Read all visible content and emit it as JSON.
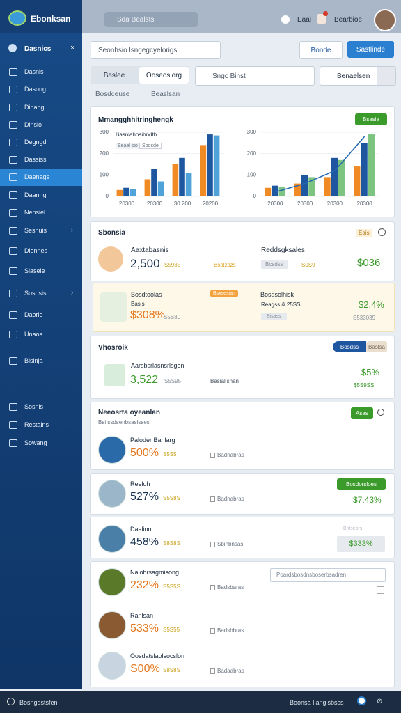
{
  "topbar": {
    "brand": "Ebonksan",
    "search": "Sda Bealsts",
    "status": "Eaai",
    "user": "Bearbioe"
  },
  "sidebar": {
    "header": "Dasnics",
    "items": [
      "Dasnis",
      "Dasong",
      "Dinang",
      "Dlnsio",
      "Degngd",
      "Dassiss",
      "Daenags",
      "Daanng",
      "Nensiel",
      "Sesnuis",
      "Dionnes",
      "Slasele",
      "Sosnsis",
      "Daorle",
      "Unaos",
      "Bisinja",
      "Sosnis",
      "Restains",
      "Sowang"
    ]
  },
  "filters": {
    "dropdown": "Seonhsio lsngegcyelorigs",
    "button_outline": "Bonde",
    "button_primary": "Sastlinde",
    "segment": [
      "Baslee",
      "Ooseosiorg"
    ],
    "dropdown2": "Sngc Binst",
    "select": "Benaelsen",
    "tags": [
      "Bosdceuse",
      "Beaslsan"
    ]
  },
  "chart_card": {
    "title": "Mmangghhitringhengk",
    "legend": "Basnlahosibndth",
    "chips": [
      "Seael sio",
      "Sbosde"
    ],
    "badge": "Bsasia",
    "charts": [
      {
        "ylim": [
          0,
          300
        ],
        "yticks": [
          0,
          100,
          200,
          300
        ],
        "categories": [
          "20300",
          "20300",
          "30 200",
          "20200"
        ],
        "series": [
          {
            "color": "#f08a24",
            "values": [
              30,
              80,
              150,
              240
            ]
          },
          {
            "color": "#1f56a0",
            "values": [
              40,
              130,
              180,
              290
            ]
          },
          {
            "color": "#4fa3d8",
            "values": [
              35,
              70,
              110,
              285
            ]
          }
        ]
      },
      {
        "ylim": [
          0,
          300
        ],
        "yticks": [
          0,
          100,
          200,
          300
        ],
        "categories": [
          "20300",
          "20300",
          "20300",
          "20300"
        ],
        "series": [
          {
            "color": "#f08a24",
            "values": [
              40,
              60,
              90,
              140
            ]
          },
          {
            "color": "#1f56a0",
            "values": [
              50,
              100,
              180,
              250
            ]
          },
          {
            "color": "#7cc47f",
            "values": [
              45,
              90,
              170,
              290
            ]
          }
        ],
        "line": {
          "color": "#2466b0",
          "values": [
            20,
            60,
            120,
            280
          ]
        }
      }
    ]
  },
  "summary": {
    "title": "Sbonsia",
    "tag": "Eais",
    "left": {
      "label": "Aaxtabasnis",
      "value": "2,500",
      "sub": "S5935",
      "note": "Bsolzszs"
    },
    "right": {
      "label": "Reddsgksales",
      "chip": "Bcsdss",
      "sub": "S0S9",
      "value": "$036"
    }
  },
  "highlight": {
    "label": "Bosdtoolas",
    "sub_label": "Basis",
    "value": "$308%",
    "sub": "S5S80",
    "tag": "Bsxsesian",
    "right": {
      "label": "Bosdsolhisk",
      "check": "Reagss & 25SS",
      "chip": "Bisass",
      "value": "$2.4%",
      "sub": "S533039"
    }
  },
  "volume": {
    "title": "Vhosroik",
    "label": "Aarsbsrlasnsrlsgen",
    "value": "3,522",
    "sub": "S5S95",
    "note": "Basialishan",
    "tags": [
      "Bosdss",
      "Baslsa"
    ],
    "right_value": "$5%",
    "right_sub": "$5S9SS"
  },
  "people": {
    "title": "Neeosrta oyeanlan",
    "subtitle": "Bsi ssdsenbsaslsses",
    "button": "Asas",
    "rows": [
      {
        "name": "Paloder Banlarg",
        "value": "500%",
        "sub": "S5S5",
        "note": "Badnabras"
      },
      {
        "name": "Reeloh",
        "value": "527%",
        "sub": "S5S8S",
        "note": "Badnabras",
        "action": "Bosdorsloes",
        "amount": "$7.43%"
      },
      {
        "name": "Daalion",
        "value": "458%",
        "sub": "S8S8S",
        "note": "Sbinbnsas",
        "caption": "Bnlsebrs",
        "amount": "$333%"
      },
      {
        "name": "Nalobrsagmisong",
        "value": "232%",
        "sub": "S5S5S",
        "note": "Badsbaras",
        "input": "Poardsbosdnsboserbsadren"
      },
      {
        "name": "Ranlsan",
        "value": "533%",
        "sub": "S5S55",
        "note": "Badsbbras"
      },
      {
        "name": "Oosdatslaolsocslon",
        "value": "S00%",
        "sub": "S8S8S",
        "note": "Badaabras"
      }
    ]
  },
  "footer": {
    "left": "Bosngdstsfen",
    "right": "Boonsa Ilanglsbsss"
  }
}
